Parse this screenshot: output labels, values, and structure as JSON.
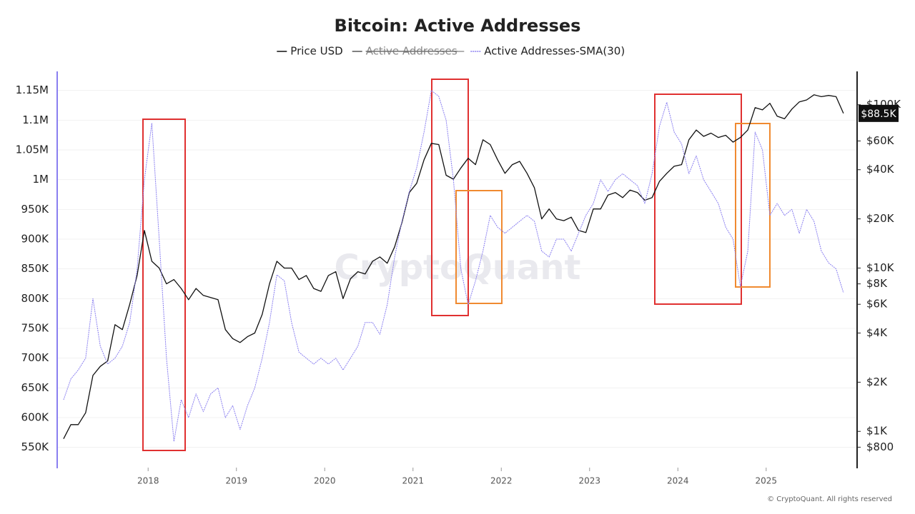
{
  "chart_data": {
    "type": "line",
    "title": "Bitcoin: Active Addresses",
    "watermark": "CryptoQuant",
    "copyright": "© CryptoQuant. All rights reserved",
    "x": [
      2017.042,
      2017.125,
      2017.208,
      2017.292,
      2017.375,
      2017.458,
      2017.542,
      2017.625,
      2017.708,
      2017.792,
      2017.875,
      2017.958,
      2018.042,
      2018.125,
      2018.208,
      2018.292,
      2018.375,
      2018.458,
      2018.542,
      2018.625,
      2018.708,
      2018.792,
      2018.875,
      2018.958,
      2019.042,
      2019.125,
      2019.208,
      2019.292,
      2019.375,
      2019.458,
      2019.542,
      2019.625,
      2019.708,
      2019.792,
      2019.875,
      2019.958,
      2020.042,
      2020.125,
      2020.208,
      2020.292,
      2020.375,
      2020.458,
      2020.542,
      2020.625,
      2020.708,
      2020.792,
      2020.875,
      2020.958,
      2021.042,
      2021.125,
      2021.208,
      2021.292,
      2021.375,
      2021.458,
      2021.542,
      2021.625,
      2021.708,
      2021.792,
      2021.875,
      2021.958,
      2022.042,
      2022.125,
      2022.208,
      2022.292,
      2022.375,
      2022.458,
      2022.542,
      2022.625,
      2022.708,
      2022.792,
      2022.875,
      2022.958,
      2023.042,
      2023.125,
      2023.208,
      2023.292,
      2023.375,
      2023.458,
      2023.542,
      2023.625,
      2023.708,
      2023.792,
      2023.875,
      2023.958,
      2024.042,
      2024.125,
      2024.208,
      2024.292,
      2024.375,
      2024.458,
      2024.542,
      2024.625,
      2024.708,
      2024.792,
      2024.875,
      2024.958,
      2025.042,
      2025.125,
      2025.208,
      2025.292,
      2025.375,
      2025.458,
      2025.542,
      2025.625,
      2025.708,
      2025.792,
      2025.875
    ],
    "series": [
      {
        "name": "Price USD",
        "color": "#111111",
        "axis": "y2",
        "visible": true,
        "values": [
          900,
          1100,
          1100,
          1300,
          2200,
          2500,
          2700,
          4500,
          4200,
          6000,
          9000,
          17000,
          11000,
          10000,
          8000,
          8500,
          7500,
          6400,
          7500,
          6800,
          6600,
          6400,
          4200,
          3700,
          3500,
          3800,
          4000,
          5200,
          8000,
          11000,
          10000,
          10000,
          8500,
          9000,
          7500,
          7200,
          9000,
          9500,
          6500,
          8600,
          9500,
          9200,
          11000,
          11700,
          10700,
          13500,
          19000,
          29000,
          33000,
          46000,
          58000,
          57000,
          37000,
          35000,
          41000,
          47000,
          43000,
          61000,
          57000,
          46000,
          38000,
          43000,
          45000,
          38000,
          31000,
          20000,
          23000,
          20000,
          19500,
          20500,
          17000,
          16500,
          23000,
          23000,
          28000,
          29000,
          27000,
          30000,
          29000,
          26000,
          27000,
          34000,
          38000,
          42000,
          43000,
          61000,
          70000,
          64000,
          67000,
          63000,
          65000,
          59000,
          63000,
          70000,
          96000,
          93000,
          102000,
          85000,
          82000,
          94000,
          104000,
          107000,
          115000,
          112000,
          114000,
          112000,
          88500
        ]
      },
      {
        "name": "Active Addresses",
        "color": "#555555",
        "visible": false
      },
      {
        "name": "Active Addresses-SMA(30)",
        "color": "#8a7ff0",
        "visible": true,
        "values": [
          630000,
          665000,
          680000,
          700000,
          800000,
          720000,
          690000,
          700000,
          720000,
          760000,
          850000,
          1000000,
          1095000,
          900000,
          700000,
          560000,
          630000,
          600000,
          640000,
          610000,
          640000,
          650000,
          600000,
          620000,
          580000,
          620000,
          650000,
          700000,
          760000,
          840000,
          830000,
          760000,
          710000,
          700000,
          690000,
          700000,
          690000,
          700000,
          680000,
          700000,
          720000,
          760000,
          760000,
          740000,
          790000,
          870000,
          930000,
          980000,
          1020000,
          1080000,
          1150000,
          1140000,
          1100000,
          1000000,
          850000,
          790000,
          830000,
          880000,
          940000,
          920000,
          910000,
          920000,
          930000,
          940000,
          930000,
          880000,
          870000,
          900000,
          900000,
          880000,
          910000,
          940000,
          960000,
          1000000,
          980000,
          1000000,
          1010000,
          1000000,
          990000,
          960000,
          1010000,
          1090000,
          1130000,
          1080000,
          1060000,
          1010000,
          1040000,
          1000000,
          980000,
          960000,
          920000,
          900000,
          820000,
          880000,
          1080000,
          1050000,
          940000,
          960000,
          940000,
          950000,
          910000,
          950000,
          930000,
          880000,
          860000,
          850000,
          810000
        ]
      }
    ],
    "xlim": [
      2016.97,
      2026.03
    ],
    "xticks": [
      2018,
      2019,
      2020,
      2021,
      2022,
      2023,
      2024,
      2025
    ],
    "ylim": [
      516000,
      1182000
    ],
    "yticks": [
      {
        "value": 550000,
        "label": "550K"
      },
      {
        "value": 600000,
        "label": "600K"
      },
      {
        "value": 650000,
        "label": "650K"
      },
      {
        "value": 700000,
        "label": "700K"
      },
      {
        "value": 750000,
        "label": "750K"
      },
      {
        "value": 800000,
        "label": "800K"
      },
      {
        "value": 850000,
        "label": "850K"
      },
      {
        "value": 900000,
        "label": "900K"
      },
      {
        "value": 950000,
        "label": "950K"
      },
      {
        "value": 1000000,
        "label": "1M"
      },
      {
        "value": 1050000,
        "label": "1.05M"
      },
      {
        "value": 1100000,
        "label": "1.1M"
      },
      {
        "value": 1150000,
        "label": "1.15M"
      }
    ],
    "y2lim": [
      600,
      160000
    ],
    "y2_log": true,
    "y2ticks": [
      {
        "value": 800,
        "label": "$800"
      },
      {
        "value": 1000,
        "label": "$1K"
      },
      {
        "value": 2000,
        "label": "$2K"
      },
      {
        "value": 4000,
        "label": "$4K"
      },
      {
        "value": 6000,
        "label": "$6K"
      },
      {
        "value": 8000,
        "label": "$8K"
      },
      {
        "value": 10000,
        "label": "$10K"
      },
      {
        "value": 20000,
        "label": "$20K"
      },
      {
        "value": 40000,
        "label": "$40K"
      },
      {
        "value": 60000,
        "label": "$60K"
      },
      {
        "value": 100000,
        "label": "$100K"
      }
    ],
    "price_tag": {
      "value": 88500,
      "label": "$88.5K"
    },
    "grid": true
  }
}
